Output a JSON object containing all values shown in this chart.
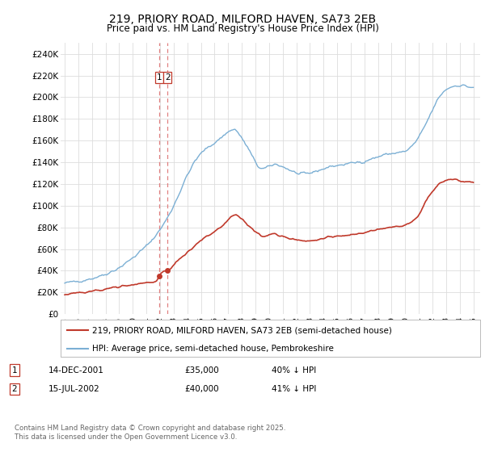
{
  "title": "219, PRIORY ROAD, MILFORD HAVEN, SA73 2EB",
  "subtitle": "Price paid vs. HM Land Registry's House Price Index (HPI)",
  "title_fontsize": 10,
  "subtitle_fontsize": 8.5,
  "ylabel_ticks": [
    "£0",
    "£20K",
    "£40K",
    "£60K",
    "£80K",
    "£100K",
    "£120K",
    "£140K",
    "£160K",
    "£180K",
    "£200K",
    "£220K",
    "£240K"
  ],
  "ytick_values": [
    0,
    20000,
    40000,
    60000,
    80000,
    100000,
    120000,
    140000,
    160000,
    180000,
    200000,
    220000,
    240000
  ],
  "ylim": [
    0,
    250000
  ],
  "hpi_color": "#7bafd4",
  "price_color": "#c0392b",
  "dashed_line_color": "#e08080",
  "bg_color": "#ffffff",
  "grid_color": "#dddddd",
  "legend_label_price": "219, PRIORY ROAD, MILFORD HAVEN, SA73 2EB (semi-detached house)",
  "legend_label_hpi": "HPI: Average price, semi-detached house, Pembrokeshire",
  "transaction1_date": "14-DEC-2001",
  "transaction1_price": "£35,000",
  "transaction1_hpi": "40% ↓ HPI",
  "transaction1_year": 2001.958,
  "transaction1_value": 35000,
  "transaction2_date": "15-JUL-2002",
  "transaction2_price": "£40,000",
  "transaction2_hpi": "41% ↓ HPI",
  "transaction2_year": 2002.542,
  "transaction2_value": 40000,
  "footer": "Contains HM Land Registry data © Crown copyright and database right 2025.\nThis data is licensed under the Open Government Licence v3.0."
}
